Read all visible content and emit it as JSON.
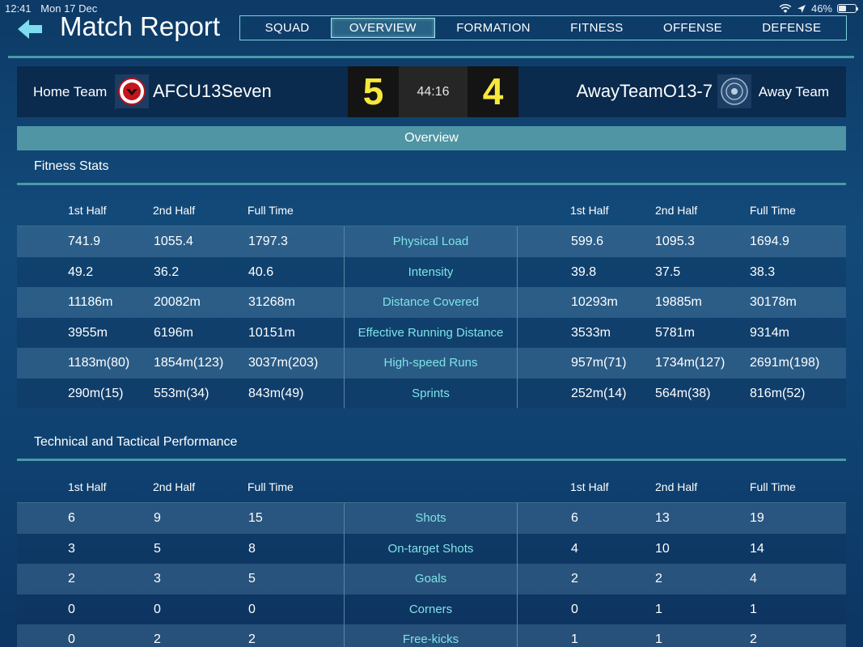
{
  "status": {
    "time": "12:41",
    "date": "Mon 17 Dec",
    "battery": "46%",
    "battery_level": 0.46
  },
  "header": {
    "title": "Match Report"
  },
  "tabs": [
    {
      "label": "SQUAD",
      "active": false
    },
    {
      "label": "OVERVIEW",
      "active": true
    },
    {
      "label": "FORMATION",
      "active": false
    },
    {
      "label": "FITNESS",
      "active": false
    },
    {
      "label": "OFFENSE",
      "active": false
    },
    {
      "label": "DEFENSE",
      "active": false
    }
  ],
  "scoreboard": {
    "home_label": "Home Team",
    "home_name": "AFCU13Seven",
    "home_score": "5",
    "clock": "44:16",
    "away_score": "4",
    "away_name": "AwayTeamO13-7",
    "away_label": "Away Team"
  },
  "section": {
    "title": "Overview"
  },
  "columns": {
    "first": "1st Half",
    "second": "2nd Half",
    "full": "Full Time"
  },
  "fitness": {
    "title": "Fitness Stats",
    "rows": [
      {
        "home": [
          "741.9",
          "1055.4",
          "1797.3"
        ],
        "label": "Physical Load",
        "away": [
          "599.6",
          "1095.3",
          "1694.9"
        ]
      },
      {
        "home": [
          "49.2",
          "36.2",
          "40.6"
        ],
        "label": "Intensity",
        "away": [
          "39.8",
          "37.5",
          "38.3"
        ]
      },
      {
        "home": [
          "11186m",
          "20082m",
          "31268m"
        ],
        "label": "Distance Covered",
        "away": [
          "10293m",
          "19885m",
          "30178m"
        ]
      },
      {
        "home": [
          "3955m",
          "6196m",
          "10151m"
        ],
        "label": "Effective Running Distance",
        "away": [
          "3533m",
          "5781m",
          "9314m"
        ]
      },
      {
        "home": [
          "1183m(80)",
          "1854m(123)",
          "3037m(203)"
        ],
        "label": "High-speed Runs",
        "away": [
          "957m(71)",
          "1734m(127)",
          "2691m(198)"
        ]
      },
      {
        "home": [
          "290m(15)",
          "553m(34)",
          "843m(49)"
        ],
        "label": "Sprints",
        "away": [
          "252m(14)",
          "564m(38)",
          "816m(52)"
        ]
      }
    ]
  },
  "technical": {
    "title": "Technical and Tactical Performance",
    "rows": [
      {
        "home": [
          "6",
          "9",
          "15"
        ],
        "label": "Shots",
        "away": [
          "6",
          "13",
          "19"
        ]
      },
      {
        "home": [
          "3",
          "5",
          "8"
        ],
        "label": "On-target Shots",
        "away": [
          "4",
          "10",
          "14"
        ]
      },
      {
        "home": [
          "2",
          "3",
          "5"
        ],
        "label": "Goals",
        "away": [
          "2",
          "2",
          "4"
        ]
      },
      {
        "home": [
          "0",
          "0",
          "0"
        ],
        "label": "Corners",
        "away": [
          "0",
          "1",
          "1"
        ]
      },
      {
        "home": [
          "0",
          "2",
          "2"
        ],
        "label": "Free-kicks",
        "away": [
          "1",
          "1",
          "2"
        ]
      }
    ]
  },
  "colors": {
    "accent": "#4f95a3",
    "score": "#f7e83c",
    "label": "#7ee3e6"
  }
}
